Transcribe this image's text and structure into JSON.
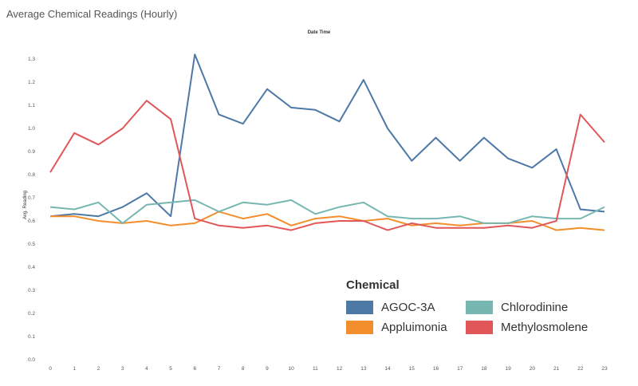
{
  "chart_data": {
    "type": "line",
    "title": "Average Chemical Readings (Hourly)",
    "xlabel": "Date Time",
    "ylabel": "Avg. Reading",
    "x": [
      0,
      1,
      2,
      3,
      4,
      5,
      6,
      7,
      8,
      9,
      10,
      11,
      12,
      13,
      14,
      15,
      16,
      17,
      18,
      19,
      20,
      21,
      22,
      23
    ],
    "ylim": [
      0,
      1.35
    ],
    "yticks": [
      "0.0",
      "0.1",
      "0.2",
      "0.3",
      "0.4",
      "0.5",
      "0.6",
      "0.7",
      "0.8",
      "0.9",
      "1.0",
      "1.1",
      "1.2",
      "1.3"
    ],
    "grid": false,
    "legend_title": "Chemical",
    "legend_position": "bottom-right",
    "series": [
      {
        "name": "AGOC-3A",
        "color": "#4e79a7",
        "values": [
          0.62,
          0.63,
          0.62,
          0.66,
          0.72,
          0.62,
          1.32,
          1.06,
          1.02,
          1.17,
          1.09,
          1.08,
          1.03,
          1.21,
          1.0,
          0.86,
          0.96,
          0.86,
          0.96,
          0.87,
          0.83,
          0.91,
          0.65,
          0.64
        ]
      },
      {
        "name": "Appluimonia",
        "color": "#f28e2b",
        "values": [
          0.62,
          0.62,
          0.6,
          0.59,
          0.6,
          0.58,
          0.59,
          0.64,
          0.61,
          0.63,
          0.58,
          0.61,
          0.62,
          0.6,
          0.61,
          0.58,
          0.59,
          0.58,
          0.59,
          0.59,
          0.6,
          0.56,
          0.57,
          0.56
        ]
      },
      {
        "name": "Chlorodinine",
        "color": "#76b7b2",
        "values": [
          0.66,
          0.65,
          0.68,
          0.59,
          0.67,
          0.68,
          0.69,
          0.64,
          0.68,
          0.67,
          0.69,
          0.63,
          0.66,
          0.68,
          0.62,
          0.61,
          0.61,
          0.62,
          0.59,
          0.59,
          0.62,
          0.61,
          0.61,
          0.66
        ]
      },
      {
        "name": "Methylosmolene",
        "color": "#e15759",
        "values": [
          0.81,
          0.98,
          0.93,
          1.0,
          1.12,
          1.04,
          0.61,
          0.58,
          0.57,
          0.58,
          0.56,
          0.59,
          0.6,
          0.6,
          0.56,
          0.59,
          0.57,
          0.57,
          0.57,
          0.58,
          0.57,
          0.6,
          1.06,
          0.94
        ]
      }
    ]
  }
}
